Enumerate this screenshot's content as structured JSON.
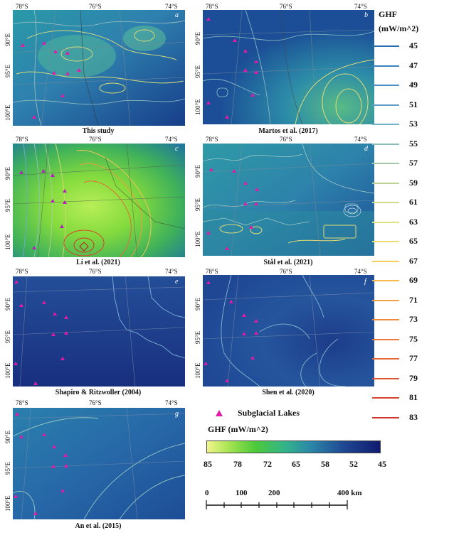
{
  "panels": [
    {
      "letter": "a",
      "caption": "This study"
    },
    {
      "letter": "b",
      "caption": "Martos et al. (2017)"
    },
    {
      "letter": "c",
      "caption": "Li et al. (2021)"
    },
    {
      "letter": "d",
      "caption": "Stål et al. (2021)"
    },
    {
      "letter": "e",
      "caption": "Shapiro & Ritzwoller (2004)"
    },
    {
      "letter": "f",
      "caption": "Shen et al. (2020)"
    },
    {
      "letter": "g",
      "caption": "An et al. (2015)"
    }
  ],
  "lat_labels": [
    "78°S",
    "76°S",
    "74°S"
  ],
  "lon_labels": [
    "90°E",
    "95°E",
    "100°E"
  ],
  "legend": {
    "title_line1": "GHF",
    "title_line2": "(mW/m^2)",
    "values": [
      "45",
      "47",
      "49",
      "51",
      "53",
      "55",
      "57",
      "59",
      "61",
      "63",
      "65",
      "67",
      "69",
      "71",
      "73",
      "75",
      "77",
      "79",
      "81",
      "83"
    ],
    "colors": [
      "#2b6fb3",
      "#3a85c0",
      "#4b8fc4",
      "#5f9fc6",
      "#74b0c6",
      "#8bbdbd",
      "#a3c8a8",
      "#bcd295",
      "#d2dc86",
      "#e4e17a",
      "#f1dc6a",
      "#f6cc5a",
      "#f6b74d",
      "#f3a043",
      "#ef8a3d",
      "#ea7638",
      "#e46434",
      "#dd5331",
      "#d6442f",
      "#cf362c"
    ]
  },
  "lakes_label": "Subglacial Lakes",
  "lakes_color": "#e21aa8",
  "colorbar": {
    "title": "GHF (mW/m^2)",
    "ticks": [
      "85",
      "78",
      "72",
      "65",
      "58",
      "52",
      "45"
    ]
  },
  "scalebar": {
    "labels": [
      "0",
      "100",
      "200",
      "400 km"
    ]
  }
}
